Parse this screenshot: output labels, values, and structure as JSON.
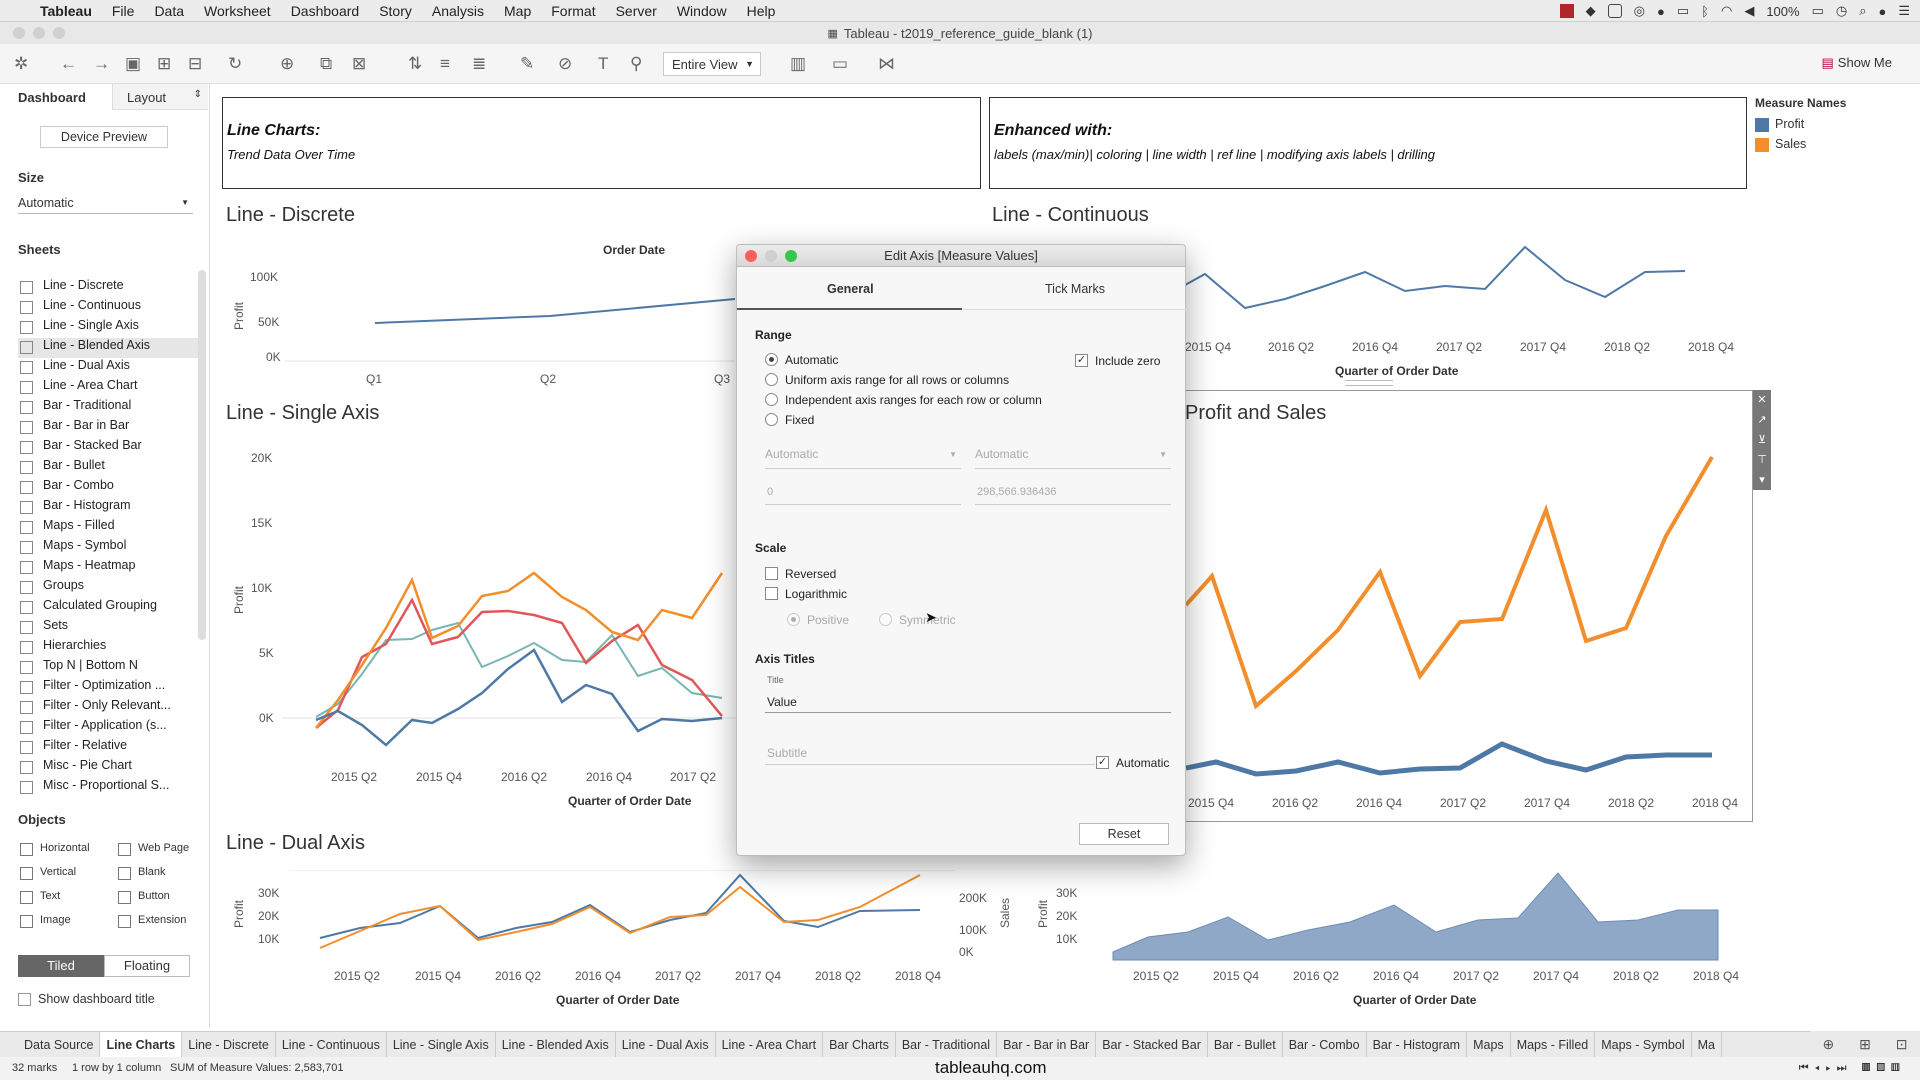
{
  "menubar": {
    "app": "Tableau",
    "items": [
      "File",
      "Data",
      "Worksheet",
      "Dashboard",
      "Story",
      "Analysis",
      "Map",
      "Format",
      "Server",
      "Window",
      "Help"
    ],
    "battery": "100%"
  },
  "window_title": "Tableau - t2019_reference_guide_blank (1)",
  "toolbar": {
    "view_mode": "Entire View",
    "show_me": "Show Me"
  },
  "left_panel": {
    "tab_dashboard": "Dashboard",
    "tab_layout": "Layout",
    "device_preview": "Device Preview",
    "size_label": "Size",
    "size_value": "Automatic",
    "sheets_label": "Sheets",
    "sheets": [
      "Line - Discrete",
      "Line -  Continuous",
      "Line - Single Axis",
      "Line - Blended Axis",
      "Line - Dual Axis",
      "Line - Area Chart",
      "Bar - Traditional",
      "Bar - Bar in Bar",
      "Bar - Stacked Bar",
      "Bar - Bullet",
      "Bar - Combo",
      "Bar - Histogram",
      "Maps - Filled",
      "Maps - Symbol",
      "Maps - Heatmap",
      "Groups",
      "Calculated Grouping",
      "Sets",
      "Hierarchies",
      "Top N | Bottom N",
      "Filter - Optimization ...",
      "Filter - Only Relevant...",
      "Filter - Application (s...",
      "Filter - Relative",
      "Misc - Pie Chart",
      "Misc - Proportional S..."
    ],
    "objects_label": "Objects",
    "objects": [
      "Horizontal",
      "Web Page",
      "Vertical",
      "Blank",
      "Text",
      "Button",
      "Image",
      "Extension"
    ],
    "tiled": "Tiled",
    "floating": "Floating",
    "show_title": "Show dashboard title"
  },
  "textboxes": {
    "left_title": "Line Charts:",
    "left_sub": "Trend Data Over Time",
    "right_title": "Enhanced with:",
    "right_sub": "labels (max/min)| coloring | line width | ref line | modifying axis labels | drilling"
  },
  "legend": {
    "title": "Measure Names",
    "items": [
      {
        "label": "Profit",
        "color": "#4e79a7"
      },
      {
        "label": "Sales",
        "color": "#f28e2b"
      }
    ]
  },
  "charts": {
    "discrete": {
      "title": "Line - Discrete",
      "header": "Order Date",
      "ylabel": "Profit",
      "yticks": [
        "100K",
        "50K",
        "0K"
      ],
      "xticks": [
        "Q1",
        "Q2",
        "Q3"
      ]
    },
    "continuous": {
      "title": "Line -  Continuous",
      "xticks": [
        "2015 Q4",
        "2016 Q2",
        "2016 Q4",
        "2017 Q2",
        "2017 Q4",
        "2018 Q2",
        "2018 Q4"
      ],
      "xlabel": "Quarter of Order Date"
    },
    "single": {
      "title": "Line - Single Axis",
      "ylabel": "Profit",
      "yticks": [
        "20K",
        "15K",
        "10K",
        "5K",
        "0K"
      ],
      "xticks": [
        "2015 Q2",
        "2015 Q4",
        "2016 Q2",
        "2016 Q4",
        "2017 Q2"
      ],
      "xlabel": "Quarter of Order Date"
    },
    "blended": {
      "title": "Profit and Sales",
      "xticks": [
        "2015 Q4",
        "2016 Q2",
        "2016 Q4",
        "2017 Q2",
        "2017 Q4",
        "2018 Q2",
        "2018 Q4"
      ]
    },
    "dual": {
      "title": "Line - Dual Axis",
      "ylabel": "Profit",
      "ylabel2": "Sales",
      "yticks": [
        "30K",
        "20K",
        "10K"
      ],
      "yticks2": [
        "200K",
        "100K",
        "0K"
      ],
      "xticks": [
        "2015 Q2",
        "2015 Q4",
        "2016 Q2",
        "2016 Q4",
        "2017 Q2",
        "2017 Q4",
        "2018 Q2",
        "2018 Q4"
      ],
      "xlabel": "Quarter of Order Date"
    },
    "area": {
      "ylabel": "Profit",
      "yticks": [
        "30K",
        "20K",
        "10K"
      ],
      "xticks": [
        "2015 Q2",
        "2015 Q4",
        "2016 Q2",
        "2016 Q4",
        "2017 Q2",
        "2017 Q4",
        "2018 Q2",
        "2018 Q4"
      ],
      "xlabel": "Quarter of Order Date"
    }
  },
  "dialog": {
    "title": "Edit Axis [Measure Values]",
    "tab_general": "General",
    "tab_tick": "Tick Marks",
    "range_label": "Range",
    "opt_auto": "Automatic",
    "opt_uniform": "Uniform axis range for all rows or columns",
    "opt_independent": "Independent axis ranges for each row or column",
    "opt_fixed": "Fixed",
    "include_zero": "Include zero",
    "start_select": "Automatic",
    "end_select": "Automatic",
    "start_value": "0",
    "end_value": "298,566.936436",
    "scale_label": "Scale",
    "reversed": "Reversed",
    "logarithmic": "Logarithmic",
    "positive": "Positive",
    "symmetric": "Symmetric",
    "axis_titles_label": "Axis Titles",
    "title_caption": "Title",
    "title_value": "Value",
    "subtitle_placeholder": "Subtitle",
    "automatic": "Automatic",
    "reset": "Reset"
  },
  "bottom_tabs": [
    "Data Source",
    "Line Charts",
    "Line - Discrete",
    "Line - Continuous",
    "Line - Single Axis",
    "Line - Blended Axis",
    "Line - Dual Axis",
    "Line - Area Chart",
    "Bar Charts",
    "Bar - Traditional",
    "Bar - Bar in Bar",
    "Bar - Stacked Bar",
    "Bar - Bullet",
    "Bar - Combo",
    "Bar - Histogram",
    "Maps",
    "Maps - Filled",
    "Maps - Symbol",
    "Ma"
  ],
  "status": {
    "marks": "32 marks",
    "rows": "1 row by 1 column",
    "sum": "SUM of Measure Values: 2,583,701"
  },
  "watermark": "tableauhq.com"
}
